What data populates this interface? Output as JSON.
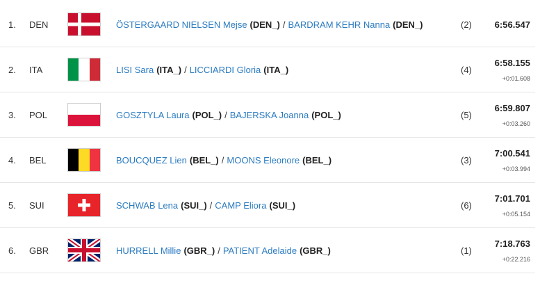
{
  "separator": "/",
  "rows": [
    {
      "rank": "1.",
      "code": "DEN",
      "athletes": [
        {
          "name": "ÖSTERGAARD NIELSEN Mejse",
          "nation": "(DEN_)"
        },
        {
          "name": "BARDRAM KEHR Nanna",
          "nation": "(DEN_)"
        }
      ],
      "lane": "(2)",
      "time": "6:56.547"
    },
    {
      "rank": "2.",
      "code": "ITA",
      "athletes": [
        {
          "name": "LISI Sara",
          "nation": "(ITA_)"
        },
        {
          "name": "LICCIARDI Gloria",
          "nation": "(ITA_)"
        }
      ],
      "lane": "(4)",
      "time": "6:58.155",
      "diff": "+0:01.608"
    },
    {
      "rank": "3.",
      "code": "POL",
      "athletes": [
        {
          "name": "GOSZTYLA Laura",
          "nation": "(POL_)"
        },
        {
          "name": "BAJERSKA Joanna",
          "nation": "(POL_)"
        }
      ],
      "lane": "(5)",
      "time": "6:59.807",
      "diff": "+0:03.260"
    },
    {
      "rank": "4.",
      "code": "BEL",
      "athletes": [
        {
          "name": "BOUCQUEZ Lien",
          "nation": "(BEL_)"
        },
        {
          "name": "MOONS Eleonore",
          "nation": "(BEL_)"
        }
      ],
      "lane": "(3)",
      "time": "7:00.541",
      "diff": "+0:03.994"
    },
    {
      "rank": "5.",
      "code": "SUI",
      "athletes": [
        {
          "name": "SCHWAB Lena",
          "nation": "(SUI_)"
        },
        {
          "name": "CAMP Eliora",
          "nation": "(SUI_)"
        }
      ],
      "lane": "(6)",
      "time": "7:01.701",
      "diff": "+0:05.154"
    },
    {
      "rank": "6.",
      "code": "GBR",
      "athletes": [
        {
          "name": "HURRELL Millie",
          "nation": "(GBR_)"
        },
        {
          "name": "PATIENT Adelaide",
          "nation": "(GBR_)"
        }
      ],
      "lane": "(1)",
      "time": "7:18.763",
      "diff": "+0:22.216"
    }
  ]
}
